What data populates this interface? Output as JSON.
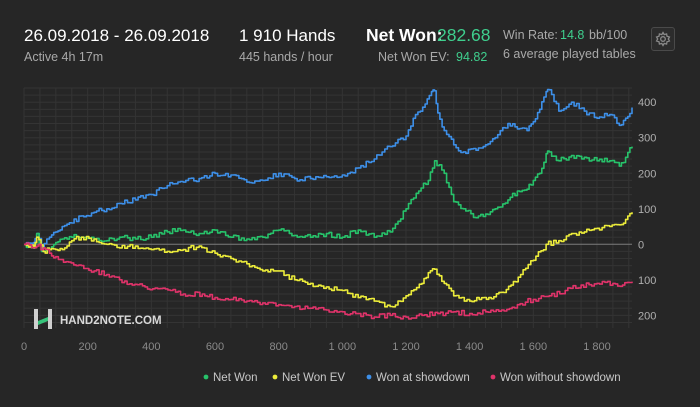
{
  "header": {
    "date_range": "26.09.2018 - 26.09.2018",
    "active": "Active 4h 17m",
    "hands": "1 910 Hands",
    "hands_per_hour": "445 hands / hour",
    "net_won_label": "Net Won:",
    "net_won_value": "282.68",
    "net_won_ev_label": "Net Won  EV:",
    "net_won_ev_value": "94.82",
    "win_rate_label": "Win Rate:",
    "win_rate_value": "14.8",
    "win_rate_unit": "bb/100",
    "tables": "6 average played tables"
  },
  "colors": {
    "accent_green": "#3fcf8e",
    "background": "#262626"
  },
  "icons": {
    "settings": "gear-icon"
  },
  "logo_text": "HAND2NOTE.COM",
  "chart_data": {
    "type": "line",
    "xlim": [
      0,
      1910
    ],
    "ylim": [
      -230,
      440
    ],
    "x_ticks": [
      0,
      200,
      400,
      600,
      800,
      1000,
      1200,
      1400,
      1600,
      1800
    ],
    "x_tick_labels": [
      "0",
      "200",
      "400",
      "600",
      "800",
      "1 000",
      "1 200",
      "1 400",
      "1 600",
      "1 800"
    ],
    "y_ticks": [
      400,
      300,
      200,
      100,
      0,
      -100,
      -200
    ],
    "y_tick_labels": [
      "400",
      "300",
      "200",
      "100",
      "0",
      "100",
      "200"
    ],
    "grid": true,
    "legend_position": "bottom-right",
    "series": [
      {
        "name": "Won at showdown",
        "color": "#3d8fe8",
        "x": [
          0,
          30,
          40,
          55,
          80,
          100,
          120,
          150,
          180,
          220,
          260,
          300,
          350,
          400,
          450,
          500,
          550,
          600,
          650,
          700,
          750,
          800,
          850,
          900,
          950,
          1000,
          1050,
          1100,
          1150,
          1200,
          1230,
          1260,
          1280,
          1290,
          1300,
          1320,
          1350,
          1380,
          1420,
          1450,
          1480,
          1520,
          1550,
          1580,
          1600,
          1620,
          1640,
          1650,
          1680,
          1720,
          1760,
          1800,
          1840,
          1870,
          1890,
          1910
        ],
        "y": [
          0,
          5,
          30,
          -10,
          20,
          35,
          50,
          60,
          80,
          90,
          100,
          115,
          125,
          140,
          165,
          175,
          185,
          200,
          195,
          175,
          180,
          200,
          185,
          185,
          190,
          195,
          215,
          240,
          275,
          305,
          365,
          395,
          430,
          432,
          370,
          320,
          280,
          260,
          265,
          280,
          300,
          340,
          325,
          320,
          345,
          380,
          430,
          435,
          375,
          400,
          375,
          355,
          365,
          335,
          355,
          385
        ]
      },
      {
        "name": "Net Won",
        "color": "#27c26a",
        "x": [
          0,
          30,
          40,
          55,
          80,
          100,
          120,
          150,
          180,
          220,
          260,
          300,
          350,
          400,
          450,
          500,
          550,
          600,
          650,
          700,
          750,
          800,
          850,
          900,
          950,
          1000,
          1050,
          1100,
          1150,
          1200,
          1240,
          1270,
          1290,
          1320,
          1350,
          1380,
          1420,
          1450,
          1480,
          1520,
          1550,
          1580,
          1600,
          1620,
          1640,
          1650,
          1680,
          1720,
          1760,
          1800,
          1840,
          1870,
          1890,
          1910
        ],
        "y": [
          0,
          -10,
          30,
          -20,
          -15,
          5,
          15,
          20,
          20,
          15,
          10,
          20,
          15,
          20,
          35,
          40,
          30,
          40,
          20,
          15,
          20,
          40,
          25,
          20,
          30,
          20,
          40,
          20,
          35,
          100,
          150,
          180,
          235,
          200,
          120,
          100,
          75,
          85,
          100,
          125,
          150,
          155,
          180,
          200,
          255,
          260,
          235,
          250,
          245,
          235,
          235,
          220,
          245,
          275
        ]
      },
      {
        "name": "Net Won  EV",
        "color": "#ecec3a",
        "x": [
          0,
          30,
          40,
          60,
          80,
          100,
          120,
          150,
          180,
          220,
          260,
          300,
          350,
          400,
          450,
          500,
          550,
          600,
          650,
          700,
          750,
          800,
          850,
          900,
          950,
          1000,
          1050,
          1100,
          1150,
          1200,
          1250,
          1270,
          1290,
          1320,
          1350,
          1400,
          1430,
          1460,
          1500,
          1530,
          1560,
          1600,
          1640,
          1680,
          1720,
          1760,
          1800,
          1840,
          1870,
          1890,
          1910
        ],
        "y": [
          0,
          -10,
          20,
          -20,
          -15,
          -15,
          -15,
          10,
          20,
          15,
          0,
          -10,
          -5,
          -15,
          -20,
          -15,
          -5,
          -25,
          -40,
          -55,
          -75,
          -75,
          -100,
          -110,
          -120,
          -130,
          -150,
          -160,
          -175,
          -145,
          -110,
          -80,
          -70,
          -110,
          -145,
          -160,
          -155,
          -150,
          -135,
          -115,
          -85,
          -45,
          0,
          10,
          30,
          35,
          45,
          50,
          55,
          70,
          90
        ]
      },
      {
        "name": "Won without showdown",
        "color": "#e0336a",
        "x": [
          0,
          40,
          60,
          80,
          100,
          140,
          180,
          220,
          260,
          300,
          340,
          380,
          420,
          460,
          500,
          560,
          600,
          650,
          700,
          750,
          800,
          850,
          900,
          950,
          1000,
          1050,
          1100,
          1150,
          1200,
          1250,
          1300,
          1350,
          1400,
          1450,
          1500,
          1550,
          1600,
          1650,
          1700,
          1750,
          1800,
          1850,
          1880,
          1910
        ],
        "y": [
          0,
          -5,
          -10,
          -25,
          -35,
          -50,
          -60,
          -75,
          -85,
          -100,
          -115,
          -120,
          -125,
          -130,
          -140,
          -140,
          -150,
          -155,
          -160,
          -165,
          -170,
          -175,
          -180,
          -185,
          -190,
          -195,
          -205,
          -200,
          -205,
          -200,
          -195,
          -190,
          -195,
          -190,
          -185,
          -170,
          -155,
          -145,
          -130,
          -115,
          -110,
          -110,
          -115,
          -105
        ]
      }
    ]
  }
}
